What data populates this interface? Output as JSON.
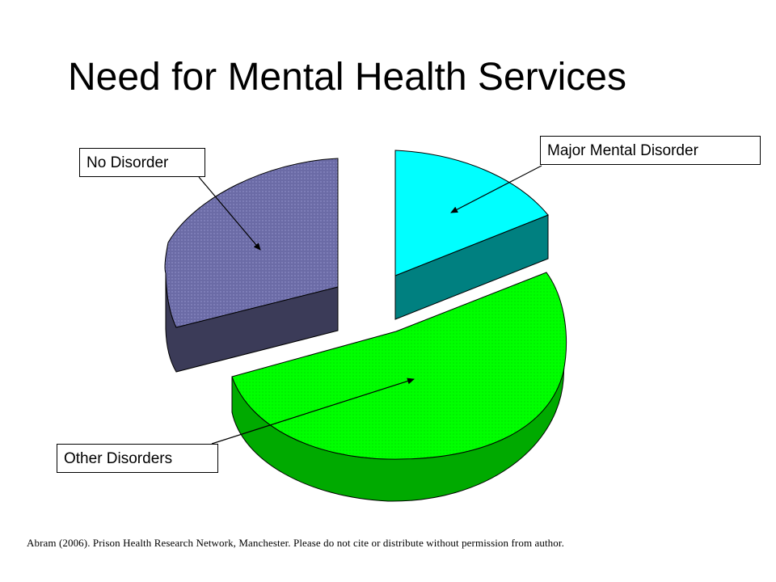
{
  "chart_data": {
    "type": "pie",
    "title": "Need for Mental Health Services",
    "style": "3D exploded pie",
    "slices": [
      {
        "label": "Major Mental Disorder",
        "value": 18,
        "color": "#00ffff",
        "side_color": "#008080"
      },
      {
        "label": "Other Disorders",
        "value": 53,
        "color": "#00ff00",
        "side_color": "#00aa00"
      },
      {
        "label": "No Disorder",
        "value": 29,
        "color": "#6b6ba6",
        "side_color": "#3b3b58"
      }
    ],
    "legend": "none (callout labels with arrows)"
  },
  "footer": {
    "text": "Abram (2006).  Prison Health Research Network, Manchester.  Please do not cite or distribute without permission  from author."
  }
}
